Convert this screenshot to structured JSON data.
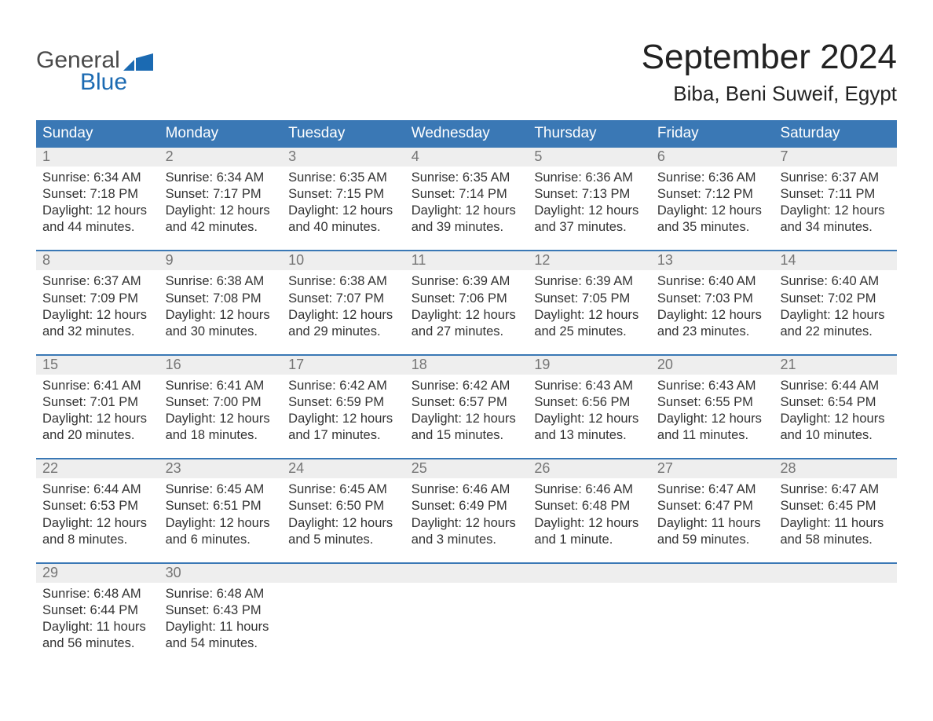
{
  "brand": {
    "line1": "General",
    "line2": "Blue"
  },
  "title": "September 2024",
  "location": "Biba, Beni Suweif, Egypt",
  "colors": {
    "header_blue": "#3a78b5",
    "logo_blue": "#1b6ab2",
    "grey_strip": "#eeeeee",
    "text_dark": "#333333",
    "background": "#ffffff"
  },
  "day_names": [
    "Sunday",
    "Monday",
    "Tuesday",
    "Wednesday",
    "Thursday",
    "Friday",
    "Saturday"
  ],
  "labels": {
    "sunrise": "Sunrise:",
    "sunset": "Sunset:",
    "daylight": "Daylight:"
  },
  "weeks": [
    [
      {
        "day": "1",
        "sunrise": "6:34 AM",
        "sunset": "7:18 PM",
        "daylight_l1": "12 hours",
        "daylight_l2": "and 44 minutes."
      },
      {
        "day": "2",
        "sunrise": "6:34 AM",
        "sunset": "7:17 PM",
        "daylight_l1": "12 hours",
        "daylight_l2": "and 42 minutes."
      },
      {
        "day": "3",
        "sunrise": "6:35 AM",
        "sunset": "7:15 PM",
        "daylight_l1": "12 hours",
        "daylight_l2": "and 40 minutes."
      },
      {
        "day": "4",
        "sunrise": "6:35 AM",
        "sunset": "7:14 PM",
        "daylight_l1": "12 hours",
        "daylight_l2": "and 39 minutes."
      },
      {
        "day": "5",
        "sunrise": "6:36 AM",
        "sunset": "7:13 PM",
        "daylight_l1": "12 hours",
        "daylight_l2": "and 37 minutes."
      },
      {
        "day": "6",
        "sunrise": "6:36 AM",
        "sunset": "7:12 PM",
        "daylight_l1": "12 hours",
        "daylight_l2": "and 35 minutes."
      },
      {
        "day": "7",
        "sunrise": "6:37 AM",
        "sunset": "7:11 PM",
        "daylight_l1": "12 hours",
        "daylight_l2": "and 34 minutes."
      }
    ],
    [
      {
        "day": "8",
        "sunrise": "6:37 AM",
        "sunset": "7:09 PM",
        "daylight_l1": "12 hours",
        "daylight_l2": "and 32 minutes."
      },
      {
        "day": "9",
        "sunrise": "6:38 AM",
        "sunset": "7:08 PM",
        "daylight_l1": "12 hours",
        "daylight_l2": "and 30 minutes."
      },
      {
        "day": "10",
        "sunrise": "6:38 AM",
        "sunset": "7:07 PM",
        "daylight_l1": "12 hours",
        "daylight_l2": "and 29 minutes."
      },
      {
        "day": "11",
        "sunrise": "6:39 AM",
        "sunset": "7:06 PM",
        "daylight_l1": "12 hours",
        "daylight_l2": "and 27 minutes."
      },
      {
        "day": "12",
        "sunrise": "6:39 AM",
        "sunset": "7:05 PM",
        "daylight_l1": "12 hours",
        "daylight_l2": "and 25 minutes."
      },
      {
        "day": "13",
        "sunrise": "6:40 AM",
        "sunset": "7:03 PM",
        "daylight_l1": "12 hours",
        "daylight_l2": "and 23 minutes."
      },
      {
        "day": "14",
        "sunrise": "6:40 AM",
        "sunset": "7:02 PM",
        "daylight_l1": "12 hours",
        "daylight_l2": "and 22 minutes."
      }
    ],
    [
      {
        "day": "15",
        "sunrise": "6:41 AM",
        "sunset": "7:01 PM",
        "daylight_l1": "12 hours",
        "daylight_l2": "and 20 minutes."
      },
      {
        "day": "16",
        "sunrise": "6:41 AM",
        "sunset": "7:00 PM",
        "daylight_l1": "12 hours",
        "daylight_l2": "and 18 minutes."
      },
      {
        "day": "17",
        "sunrise": "6:42 AM",
        "sunset": "6:59 PM",
        "daylight_l1": "12 hours",
        "daylight_l2": "and 17 minutes."
      },
      {
        "day": "18",
        "sunrise": "6:42 AM",
        "sunset": "6:57 PM",
        "daylight_l1": "12 hours",
        "daylight_l2": "and 15 minutes."
      },
      {
        "day": "19",
        "sunrise": "6:43 AM",
        "sunset": "6:56 PM",
        "daylight_l1": "12 hours",
        "daylight_l2": "and 13 minutes."
      },
      {
        "day": "20",
        "sunrise": "6:43 AM",
        "sunset": "6:55 PM",
        "daylight_l1": "12 hours",
        "daylight_l2": "and 11 minutes."
      },
      {
        "day": "21",
        "sunrise": "6:44 AM",
        "sunset": "6:54 PM",
        "daylight_l1": "12 hours",
        "daylight_l2": "and 10 minutes."
      }
    ],
    [
      {
        "day": "22",
        "sunrise": "6:44 AM",
        "sunset": "6:53 PM",
        "daylight_l1": "12 hours",
        "daylight_l2": "and 8 minutes."
      },
      {
        "day": "23",
        "sunrise": "6:45 AM",
        "sunset": "6:51 PM",
        "daylight_l1": "12 hours",
        "daylight_l2": "and 6 minutes."
      },
      {
        "day": "24",
        "sunrise": "6:45 AM",
        "sunset": "6:50 PM",
        "daylight_l1": "12 hours",
        "daylight_l2": "and 5 minutes."
      },
      {
        "day": "25",
        "sunrise": "6:46 AM",
        "sunset": "6:49 PM",
        "daylight_l1": "12 hours",
        "daylight_l2": "and 3 minutes."
      },
      {
        "day": "26",
        "sunrise": "6:46 AM",
        "sunset": "6:48 PM",
        "daylight_l1": "12 hours",
        "daylight_l2": "and 1 minute."
      },
      {
        "day": "27",
        "sunrise": "6:47 AM",
        "sunset": "6:47 PM",
        "daylight_l1": "11 hours",
        "daylight_l2": "and 59 minutes."
      },
      {
        "day": "28",
        "sunrise": "6:47 AM",
        "sunset": "6:45 PM",
        "daylight_l1": "11 hours",
        "daylight_l2": "and 58 minutes."
      }
    ],
    [
      {
        "day": "29",
        "sunrise": "6:48 AM",
        "sunset": "6:44 PM",
        "daylight_l1": "11 hours",
        "daylight_l2": "and 56 minutes."
      },
      {
        "day": "30",
        "sunrise": "6:48 AM",
        "sunset": "6:43 PM",
        "daylight_l1": "11 hours",
        "daylight_l2": "and 54 minutes."
      },
      null,
      null,
      null,
      null,
      null
    ]
  ]
}
